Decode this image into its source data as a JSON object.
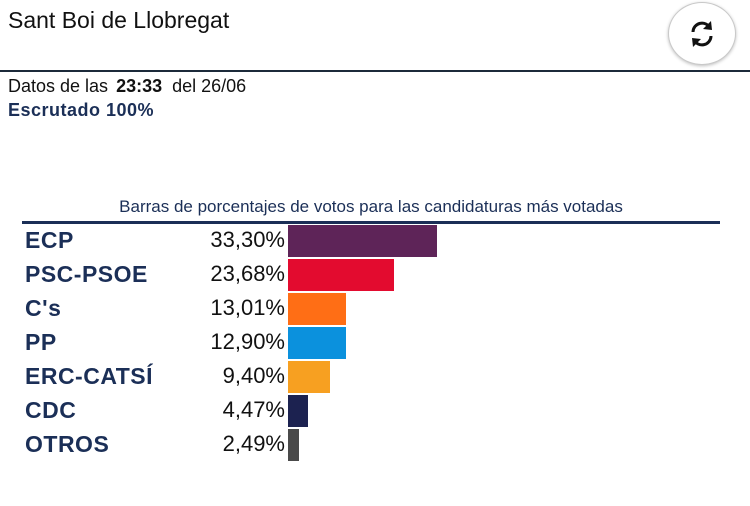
{
  "header": {
    "title": "Sant Boi de Llobregat",
    "refresh_icon": "refresh-arrows-icon"
  },
  "update": {
    "prefix": "Datos de las",
    "time": "23:33",
    "date_text": "del 26/06",
    "scrutiny": "Escrutado 100%"
  },
  "chart": {
    "title": "Barras de porcentajes de votos para las candidaturas más votadas"
  },
  "chart_data": {
    "type": "bar",
    "orientation": "horizontal",
    "title": "Barras de porcentajes de votos para las candidaturas más votadas",
    "categories": [
      "ECP",
      "PSC-PSOE",
      "C's",
      "PP",
      "ERC-CATSÍ",
      "CDC",
      "OTROS"
    ],
    "values": [
      33.3,
      23.68,
      13.01,
      12.9,
      9.4,
      4.47,
      2.49
    ],
    "labels": [
      "33,30%",
      "23,68%",
      "13,01%",
      "12,90%",
      "9,40%",
      "4,47%",
      "2,49%"
    ],
    "colors": [
      "#5e2458",
      "#e30b2f",
      "#ff6e15",
      "#0b91dd",
      "#f7a021",
      "#1c2250",
      "#4a4a4a"
    ],
    "xlim": [
      0,
      100
    ],
    "grid": false,
    "legend": "none"
  }
}
